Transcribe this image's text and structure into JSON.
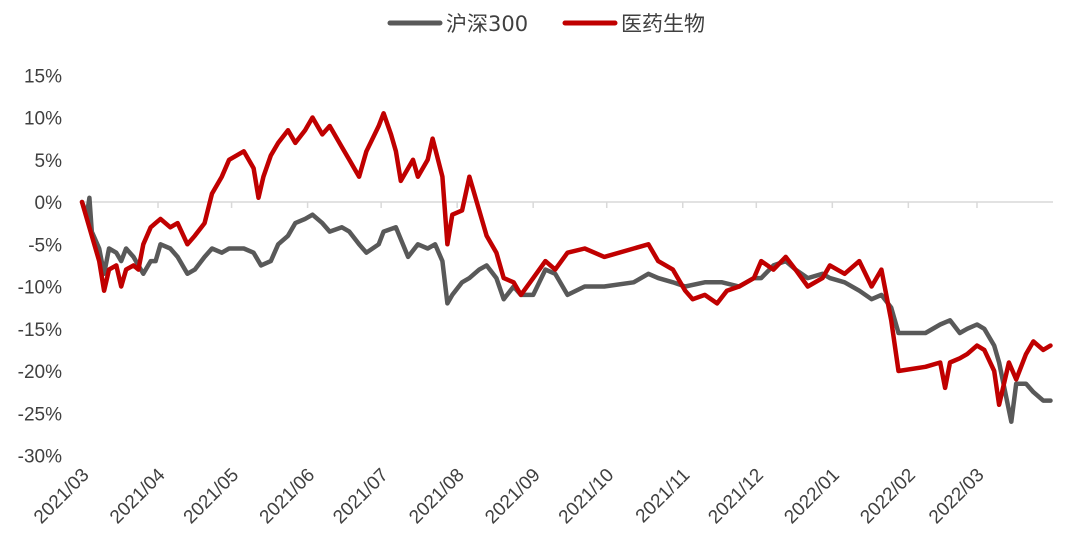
{
  "chart_data": {
    "type": "line",
    "title": "",
    "xlabel": "",
    "ylabel": "",
    "legend_position": "top-center",
    "grid": false,
    "ylim": [
      -30,
      15
    ],
    "yticks": [
      "15%",
      "10%",
      "5%",
      "0%",
      "-5%",
      "-10%",
      "-15%",
      "-20%",
      "-25%",
      "-30%"
    ],
    "ytick_values": [
      15,
      10,
      5,
      0,
      -5,
      -10,
      -15,
      -20,
      -25,
      -30
    ],
    "xlim": [
      "2021/03",
      "2022/04"
    ],
    "xtick_labels": [
      "2021/03",
      "2021/04",
      "2021/05",
      "2021/06",
      "2021/07",
      "2021/08",
      "2021/09",
      "2021/10",
      "2021/11",
      "2021/12",
      "2022/01",
      "2022/02",
      "2022/03"
    ],
    "series": [
      {
        "name": "沪深300",
        "color": "#595959",
        "points": [
          [
            "2021/03/01",
            0
          ],
          [
            "2021/03/03",
            -1.5
          ],
          [
            "2021/03/04",
            0.5
          ],
          [
            "2021/03/05",
            -3.5
          ],
          [
            "2021/03/08",
            -5.5
          ],
          [
            "2021/03/10",
            -8.5
          ],
          [
            "2021/03/12",
            -5.5
          ],
          [
            "2021/03/15",
            -6
          ],
          [
            "2021/03/17",
            -7
          ],
          [
            "2021/03/19",
            -5.5
          ],
          [
            "2021/03/22",
            -6.5
          ],
          [
            "2021/03/24",
            -7.5
          ],
          [
            "2021/03/26",
            -8.5
          ],
          [
            "2021/03/29",
            -7
          ],
          [
            "2021/03/31",
            -7
          ],
          [
            "2021/04/02",
            -5
          ],
          [
            "2021/04/06",
            -5.5
          ],
          [
            "2021/04/09",
            -6.5
          ],
          [
            "2021/04/13",
            -8.5
          ],
          [
            "2021/04/16",
            -8
          ],
          [
            "2021/04/20",
            -6.5
          ],
          [
            "2021/04/23",
            -5.5
          ],
          [
            "2021/04/27",
            -6
          ],
          [
            "2021/04/30",
            -5.5
          ],
          [
            "2021/05/06",
            -5.5
          ],
          [
            "2021/05/10",
            -6
          ],
          [
            "2021/05/13",
            -7.5
          ],
          [
            "2021/05/17",
            -7
          ],
          [
            "2021/05/20",
            -5
          ],
          [
            "2021/05/24",
            -4
          ],
          [
            "2021/05/27",
            -2.5
          ],
          [
            "2021/05/31",
            -2
          ],
          [
            "2021/06/03",
            -1.5
          ],
          [
            "2021/06/07",
            -2.5
          ],
          [
            "2021/06/10",
            -3.5
          ],
          [
            "2021/06/15",
            -3
          ],
          [
            "2021/06/18",
            -3.5
          ],
          [
            "2021/06/22",
            -5
          ],
          [
            "2021/06/25",
            -6
          ],
          [
            "2021/06/30",
            -5
          ],
          [
            "2021/07/02",
            -3.5
          ],
          [
            "2021/07/07",
            -3
          ],
          [
            "2021/07/12",
            -6.5
          ],
          [
            "2021/07/16",
            -5
          ],
          [
            "2021/07/20",
            -5.5
          ],
          [
            "2021/07/23",
            -5
          ],
          [
            "2021/07/26",
            -7
          ],
          [
            "2021/07/28",
            -12
          ],
          [
            "2021/07/30",
            -11
          ],
          [
            "2021/08/03",
            -9.5
          ],
          [
            "2021/08/06",
            -9
          ],
          [
            "2021/08/10",
            -8
          ],
          [
            "2021/08/13",
            -7.5
          ],
          [
            "2021/08/17",
            -9
          ],
          [
            "2021/08/20",
            -11.5
          ],
          [
            "2021/08/24",
            -10
          ],
          [
            "2021/08/27",
            -11
          ],
          [
            "2021/09/01",
            -11
          ],
          [
            "2021/09/06",
            -8
          ],
          [
            "2021/09/10",
            -8.5
          ],
          [
            "2021/09/15",
            -11
          ],
          [
            "2021/09/22",
            -10
          ],
          [
            "2021/09/30",
            -10
          ],
          [
            "2021/10/12",
            -9.5
          ],
          [
            "2021/10/18",
            -8.5
          ],
          [
            "2021/10/22",
            -9
          ],
          [
            "2021/10/28",
            -9.5
          ],
          [
            "2021/11/02",
            -10
          ],
          [
            "2021/11/10",
            -9.5
          ],
          [
            "2021/11/17",
            -9.5
          ],
          [
            "2021/11/24",
            -10
          ],
          [
            "2021/11/30",
            -9
          ],
          [
            "2021/12/03",
            -9
          ],
          [
            "2021/12/08",
            -7.5
          ],
          [
            "2021/12/13",
            -7
          ],
          [
            "2021/12/17",
            -8
          ],
          [
            "2021/12/22",
            -9
          ],
          [
            "2021/12/28",
            -8.5
          ],
          [
            "2021/12/31",
            -9
          ],
          [
            "2022/01/06",
            -9.5
          ],
          [
            "2022/01/12",
            -10.5
          ],
          [
            "2022/01/17",
            -11.5
          ],
          [
            "2022/01/21",
            -11
          ],
          [
            "2022/01/25",
            -12.5
          ],
          [
            "2022/01/28",
            -15.5
          ],
          [
            "2022/02/08",
            -15.5
          ],
          [
            "2022/02/14",
            -14.5
          ],
          [
            "2022/02/18",
            -14
          ],
          [
            "2022/02/22",
            -15.5
          ],
          [
            "2022/02/25",
            -15
          ],
          [
            "2022/03/01",
            -14.5
          ],
          [
            "2022/03/04",
            -15
          ],
          [
            "2022/03/08",
            -17
          ],
          [
            "2022/03/10",
            -19
          ],
          [
            "2022/03/15",
            -26
          ],
          [
            "2022/03/17",
            -21.5
          ],
          [
            "2022/03/21",
            -21.5
          ],
          [
            "2022/03/24",
            -22.5
          ],
          [
            "2022/03/28",
            -23.5
          ],
          [
            "2022/03/31",
            -23.5
          ]
        ]
      },
      {
        "name": "医药生物",
        "color": "#C00000",
        "points": [
          [
            "2021/03/01",
            0
          ],
          [
            "2021/03/03",
            -2
          ],
          [
            "2021/03/05",
            -4
          ],
          [
            "2021/03/08",
            -7
          ],
          [
            "2021/03/10",
            -10.5
          ],
          [
            "2021/03/12",
            -8
          ],
          [
            "2021/03/15",
            -7.5
          ],
          [
            "2021/03/17",
            -10
          ],
          [
            "2021/03/19",
            -8
          ],
          [
            "2021/03/22",
            -7.5
          ],
          [
            "2021/03/24",
            -8
          ],
          [
            "2021/03/26",
            -5
          ],
          [
            "2021/03/29",
            -3
          ],
          [
            "2021/03/31",
            -2.5
          ],
          [
            "2021/04/02",
            -2
          ],
          [
            "2021/04/06",
            -3
          ],
          [
            "2021/04/09",
            -2.5
          ],
          [
            "2021/04/13",
            -5
          ],
          [
            "2021/04/16",
            -4
          ],
          [
            "2021/04/20",
            -2.5
          ],
          [
            "2021/04/23",
            1
          ],
          [
            "2021/04/27",
            3
          ],
          [
            "2021/04/30",
            5
          ],
          [
            "2021/05/06",
            6
          ],
          [
            "2021/05/10",
            4
          ],
          [
            "2021/05/12",
            0.5
          ],
          [
            "2021/05/14",
            3
          ],
          [
            "2021/05/17",
            5.5
          ],
          [
            "2021/05/20",
            7
          ],
          [
            "2021/05/24",
            8.5
          ],
          [
            "2021/05/27",
            7
          ],
          [
            "2021/05/31",
            8.5
          ],
          [
            "2021/06/03",
            10
          ],
          [
            "2021/06/07",
            8
          ],
          [
            "2021/06/10",
            9
          ],
          [
            "2021/06/15",
            6.5
          ],
          [
            "2021/06/18",
            5
          ],
          [
            "2021/06/22",
            3
          ],
          [
            "2021/06/25",
            6
          ],
          [
            "2021/06/30",
            9
          ],
          [
            "2021/07/02",
            10.5
          ],
          [
            "2021/07/05",
            8
          ],
          [
            "2021/07/07",
            6
          ],
          [
            "2021/07/09",
            2.5
          ],
          [
            "2021/07/12",
            4
          ],
          [
            "2021/07/14",
            5
          ],
          [
            "2021/07/16",
            3
          ],
          [
            "2021/07/20",
            5
          ],
          [
            "2021/07/22",
            7.5
          ],
          [
            "2021/07/26",
            3
          ],
          [
            "2021/07/28",
            -5
          ],
          [
            "2021/07/30",
            -1.5
          ],
          [
            "2021/08/03",
            -1
          ],
          [
            "2021/08/06",
            3
          ],
          [
            "2021/08/10",
            -1
          ],
          [
            "2021/08/13",
            -4
          ],
          [
            "2021/08/17",
            -6
          ],
          [
            "2021/08/20",
            -9
          ],
          [
            "2021/08/24",
            -9.5
          ],
          [
            "2021/08/27",
            -11
          ],
          [
            "2021/09/01",
            -9
          ],
          [
            "2021/09/06",
            -7
          ],
          [
            "2021/09/10",
            -8
          ],
          [
            "2021/09/15",
            -6
          ],
          [
            "2021/09/22",
            -5.5
          ],
          [
            "2021/09/30",
            -6.5
          ],
          [
            "2021/10/12",
            -5.5
          ],
          [
            "2021/10/18",
            -5
          ],
          [
            "2021/10/22",
            -7
          ],
          [
            "2021/10/28",
            -8
          ],
          [
            "2021/11/02",
            -10.5
          ],
          [
            "2021/11/05",
            -11.5
          ],
          [
            "2021/11/10",
            -11
          ],
          [
            "2021/11/15",
            -12
          ],
          [
            "2021/11/19",
            -10.5
          ],
          [
            "2021/11/24",
            -10
          ],
          [
            "2021/11/30",
            -9
          ],
          [
            "2021/12/03",
            -7
          ],
          [
            "2021/12/08",
            -8
          ],
          [
            "2021/12/13",
            -6.5
          ],
          [
            "2021/12/17",
            -8
          ],
          [
            "2021/12/22",
            -10
          ],
          [
            "2021/12/28",
            -9
          ],
          [
            "2021/12/31",
            -7.5
          ],
          [
            "2022/01/06",
            -8.5
          ],
          [
            "2022/01/12",
            -7
          ],
          [
            "2022/01/17",
            -10
          ],
          [
            "2022/01/21",
            -8
          ],
          [
            "2022/01/25",
            -14
          ],
          [
            "2022/01/28",
            -20
          ],
          [
            "2022/02/08",
            -19.5
          ],
          [
            "2022/02/14",
            -19
          ],
          [
            "2022/02/16",
            -22
          ],
          [
            "2022/02/18",
            -19
          ],
          [
            "2022/02/22",
            -18.5
          ],
          [
            "2022/02/25",
            -18
          ],
          [
            "2022/03/01",
            -17
          ],
          [
            "2022/03/04",
            -17.5
          ],
          [
            "2022/03/08",
            -20
          ],
          [
            "2022/03/10",
            -24
          ],
          [
            "2022/03/14",
            -19
          ],
          [
            "2022/03/17",
            -21
          ],
          [
            "2022/03/21",
            -18
          ],
          [
            "2022/03/24",
            -16.5
          ],
          [
            "2022/03/28",
            -17.5
          ],
          [
            "2022/03/31",
            -17
          ]
        ]
      }
    ]
  }
}
